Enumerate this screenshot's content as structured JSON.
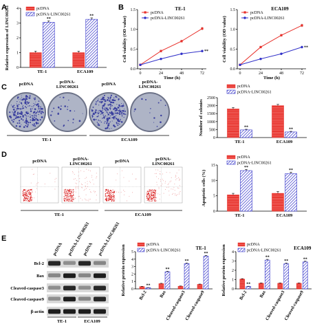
{
  "colors": {
    "pcdna": "#e8302a",
    "linc": "#3030c8",
    "plate_bg": "#aeb4c6",
    "plate_dot": "#3a3f9e",
    "scatter": "#d81818",
    "scatter_lt": "#e88080"
  },
  "panels": {
    "A": "A",
    "B": "B",
    "C": "C",
    "D": "D",
    "E": "E"
  },
  "legend": {
    "pcdna": "pcDNA",
    "linc": "pcDNA-LINC00261"
  },
  "chart_data": [
    {
      "id": "A",
      "type": "bar",
      "categories": [
        "TE-1",
        "ECA109"
      ],
      "series": [
        {
          "name": "pcDNA",
          "values": [
            1.0,
            1.0
          ],
          "errors": [
            0.1,
            0.1
          ]
        },
        {
          "name": "pcDNA-LINC00261",
          "values": [
            3.05,
            3.25
          ],
          "errors": [
            0.1,
            0.1
          ]
        }
      ],
      "significance": [
        "**",
        "**"
      ],
      "ylabel": "Relative expression of LINC00261",
      "ylim": [
        0,
        4
      ],
      "yticks": [
        0,
        1,
        2,
        3,
        4
      ]
    },
    {
      "id": "B1",
      "type": "line",
      "title": "TE-1",
      "x": [
        0,
        24,
        48,
        72
      ],
      "series": [
        {
          "name": "pcDNA",
          "values": [
            0.1,
            0.45,
            0.7,
            1.02
          ],
          "errors": [
            0.02,
            0.03,
            0.03,
            0.04
          ]
        },
        {
          "name": "pcDNA-LINC00261",
          "values": [
            0.1,
            0.25,
            0.38,
            0.45
          ],
          "errors": [
            0.02,
            0.02,
            0.02,
            0.03
          ]
        }
      ],
      "significance": "**",
      "xlabel": "Time (h)",
      "ylabel": "Cell viability (OD value)",
      "xticks": [
        0,
        24,
        48,
        72
      ],
      "ylim": [
        0,
        1.5
      ],
      "yticks": [
        "0.0",
        "0.5",
        "1.0",
        "1.5"
      ]
    },
    {
      "id": "B2",
      "type": "line",
      "title": "ECA109",
      "x": [
        0,
        24,
        48,
        72
      ],
      "series": [
        {
          "name": "pcDNA",
          "values": [
            0.1,
            0.55,
            0.85,
            1.1
          ],
          "errors": [
            0.02,
            0.03,
            0.03,
            0.04
          ]
        },
        {
          "name": "pcDNA-LINC00261",
          "values": [
            0.1,
            0.25,
            0.38,
            0.55
          ],
          "errors": [
            0.02,
            0.02,
            0.02,
            0.03
          ]
        }
      ],
      "significance": "**",
      "xlabel": "Time (h)",
      "ylabel": "Cell viability (OD value)",
      "xticks": [
        0,
        24,
        48,
        72
      ],
      "ylim": [
        0,
        1.5
      ],
      "yticks": [
        "0.0",
        "0.5",
        "1.0",
        "1.5"
      ]
    },
    {
      "id": "C",
      "type": "bar",
      "categories": [
        "TE-1",
        "ECA109"
      ],
      "series": [
        {
          "name": "pcDNA",
          "values": [
            1800,
            2000
          ],
          "errors": [
            80,
            80
          ]
        },
        {
          "name": "pcDNA-LINC00261",
          "values": [
            480,
            350
          ],
          "errors": [
            40,
            40
          ]
        }
      ],
      "significance": [
        "**",
        "**"
      ],
      "ylabel": "Number of colonies",
      "ylim": [
        0,
        2500
      ],
      "yticks": [
        0,
        500,
        1000,
        1500,
        2000,
        2500
      ]
    },
    {
      "id": "D",
      "type": "bar",
      "categories": [
        "TE-1",
        "ECA109"
      ],
      "series": [
        {
          "name": "pcDNA",
          "values": [
            5.3,
            5.8
          ],
          "errors": [
            0.5,
            0.6
          ]
        },
        {
          "name": "pcDNA-LINC00261",
          "values": [
            13.2,
            12.2
          ],
          "errors": [
            0.4,
            0.5
          ]
        }
      ],
      "significance": [
        "**",
        "**"
      ],
      "ylabel": "Apoptotic cells (%)",
      "ylim": [
        0,
        15
      ],
      "yticks": [
        0,
        5,
        10,
        15
      ]
    },
    {
      "id": "E1",
      "type": "bar",
      "title": "TE-1",
      "categories": [
        "Bcl-2",
        "Bax",
        "Cleaved-caspase3",
        "Cleaved-caspase9"
      ],
      "series": [
        {
          "name": "pcDNA",
          "values": [
            0.3,
            0.7,
            0.35,
            0.6
          ],
          "errors": [
            0.04,
            0.05,
            0.04,
            0.05
          ]
        },
        {
          "name": "pcDNA-LINC00261",
          "values": [
            0.15,
            2.3,
            3.4,
            4.4
          ],
          "errors": [
            0.03,
            0.08,
            0.08,
            0.1
          ]
        }
      ],
      "significance": [
        "**",
        "**",
        "**",
        "**"
      ],
      "ylabel": "Relative protein expression",
      "ylim": [
        0,
        5
      ],
      "yticks": [
        0,
        1,
        2,
        3,
        4,
        5
      ]
    },
    {
      "id": "E2",
      "type": "bar",
      "title": "ECA109",
      "categories": [
        "Bcl-2",
        "Bax",
        "Cleaved-caspase3",
        "Cleaved-caspase9"
      ],
      "series": [
        {
          "name": "pcDNA",
          "values": [
            1.05,
            0.6,
            0.6,
            0.6
          ],
          "errors": [
            0.05,
            0.04,
            0.04,
            0.04
          ]
        },
        {
          "name": "pcDNA-LINC00261",
          "values": [
            0.25,
            3.1,
            2.7,
            2.9
          ],
          "errors": [
            0.03,
            0.08,
            0.08,
            0.08
          ]
        }
      ],
      "significance": [
        "**",
        "**",
        "**",
        "**"
      ],
      "ylabel": "Relative protein expression",
      "ylim": [
        0,
        4
      ],
      "yticks": [
        0,
        1,
        2,
        3,
        4
      ]
    }
  ],
  "colony_labels": [
    "pcDNA",
    "pcDNA-\nLINC00261",
    "pcDNA",
    "pcDNA-\nLINC00261"
  ],
  "colony_groups": [
    "TE-1",
    "ECA109"
  ],
  "flow_labels": [
    "pcDNA",
    "pcDNA-\nLINC00261",
    "pcDNA",
    "pcDNA-\nLINC00261"
  ],
  "flow_groups": [
    "TE-1",
    "ECA109"
  ],
  "blot": {
    "columns": [
      "pcDNA",
      "pcDNA-LINC00261",
      "pcDNA",
      "pcDNA-LINC00261"
    ],
    "rows": [
      "Bcl-2",
      "Bax",
      "Cleaved-caspase3",
      "Cleaved-caspase9",
      "β-actin"
    ],
    "groups": [
      "TE-1",
      "ECA109"
    ]
  }
}
